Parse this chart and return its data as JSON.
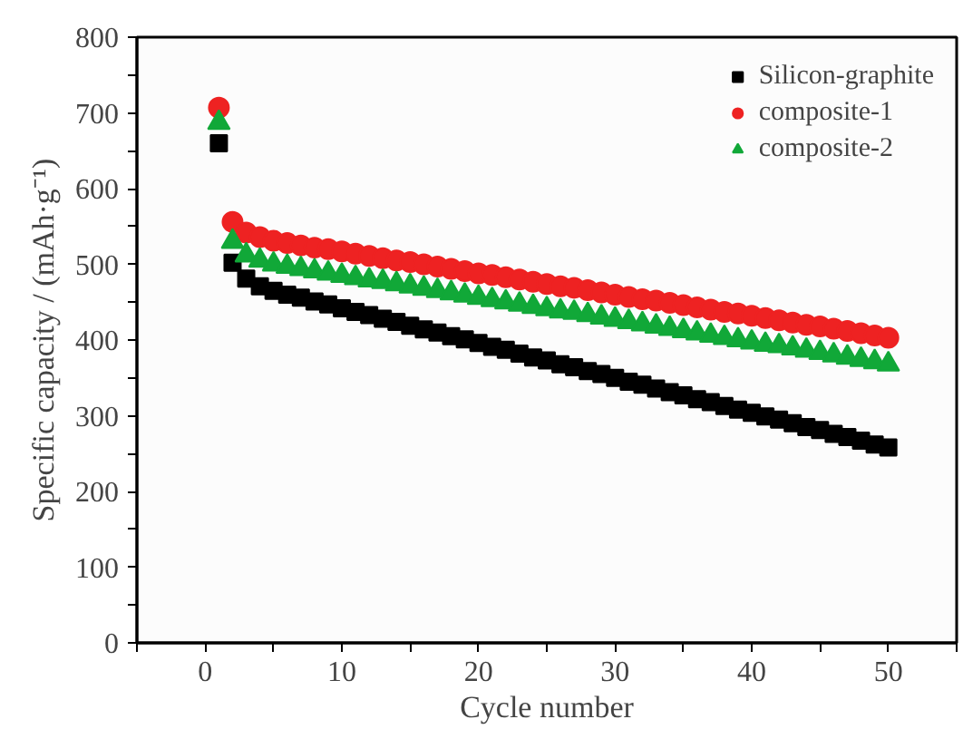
{
  "chart_data": {
    "type": "scatter",
    "xlabel": "Cycle number",
    "ylabel": "Specific capacity / (mAh·g⁻¹)",
    "x": [
      1,
      2,
      3,
      4,
      5,
      6,
      7,
      8,
      9,
      10,
      11,
      12,
      13,
      14,
      15,
      16,
      17,
      18,
      19,
      20,
      21,
      22,
      23,
      24,
      25,
      26,
      27,
      28,
      29,
      30,
      31,
      32,
      33,
      34,
      35,
      36,
      37,
      38,
      39,
      40,
      41,
      42,
      43,
      44,
      45,
      46,
      47,
      48,
      49,
      50
    ],
    "xlim": [
      -5,
      55
    ],
    "ylim": [
      0,
      800
    ],
    "xticks": [
      {
        "value": -5,
        "label": null
      },
      0,
      {
        "value": 5,
        "label": null
      },
      10,
      {
        "value": 15,
        "label": null
      },
      20,
      {
        "value": 25,
        "label": null
      },
      30,
      {
        "value": 35,
        "label": null
      },
      40,
      {
        "value": 45,
        "label": null
      },
      50,
      {
        "value": 55,
        "label": null
      }
    ],
    "yticks": [
      0,
      {
        "value": 50,
        "label": null
      },
      100,
      {
        "value": 150,
        "label": null
      },
      200,
      {
        "value": 250,
        "label": null
      },
      300,
      {
        "value": 350,
        "label": null
      },
      400,
      {
        "value": 450,
        "label": null
      },
      500,
      {
        "value": 550,
        "label": null
      },
      600,
      {
        "value": 650,
        "label": null
      },
      700,
      {
        "value": 750,
        "label": null
      },
      800
    ],
    "grid": false,
    "legend": "top right",
    "series": [
      {
        "name": "Silicon-graphite",
        "color": "#000000",
        "marker": "square",
        "values": [
          660,
          502,
          481,
          471,
          465,
          460,
          456,
          451,
          447,
          442,
          437,
          433,
          428,
          424,
          419,
          414,
          410,
          405,
          401,
          396,
          391,
          387,
          382,
          377,
          373,
          368,
          364,
          359,
          355,
          350,
          345,
          341,
          336,
          331,
          327,
          322,
          318,
          313,
          308,
          304,
          299,
          295,
          290,
          285,
          281,
          276,
          272,
          267,
          262,
          258
        ]
      },
      {
        "name": "composite-1",
        "color": "#ee2222",
        "marker": "circle",
        "values": [
          707,
          556,
          542,
          536,
          531,
          528,
          525,
          522,
          520,
          517,
          514,
          511,
          508,
          505,
          503,
          500,
          497,
          494,
          491,
          488,
          486,
          483,
          480,
          477,
          474,
          471,
          469,
          466,
          463,
          460,
          457,
          454,
          452,
          449,
          446,
          443,
          440,
          437,
          435,
          432,
          429,
          426,
          423,
          420,
          418,
          415,
          412,
          409,
          406,
          403
        ]
      },
      {
        "name": "composite-2",
        "color": "#11a838",
        "marker": "triangle",
        "values": [
          687,
          530,
          512,
          505,
          500,
          497,
          494,
          491,
          488,
          485,
          482,
          479,
          477,
          474,
          471,
          468,
          465,
          462,
          459,
          456,
          453,
          450,
          447,
          444,
          441,
          438,
          436,
          433,
          430,
          427,
          424,
          421,
          418,
          415,
          412,
          409,
          406,
          403,
          400,
          397,
          394,
          392,
          389,
          386,
          383,
          380,
          377,
          374,
          371,
          368
        ]
      }
    ]
  }
}
